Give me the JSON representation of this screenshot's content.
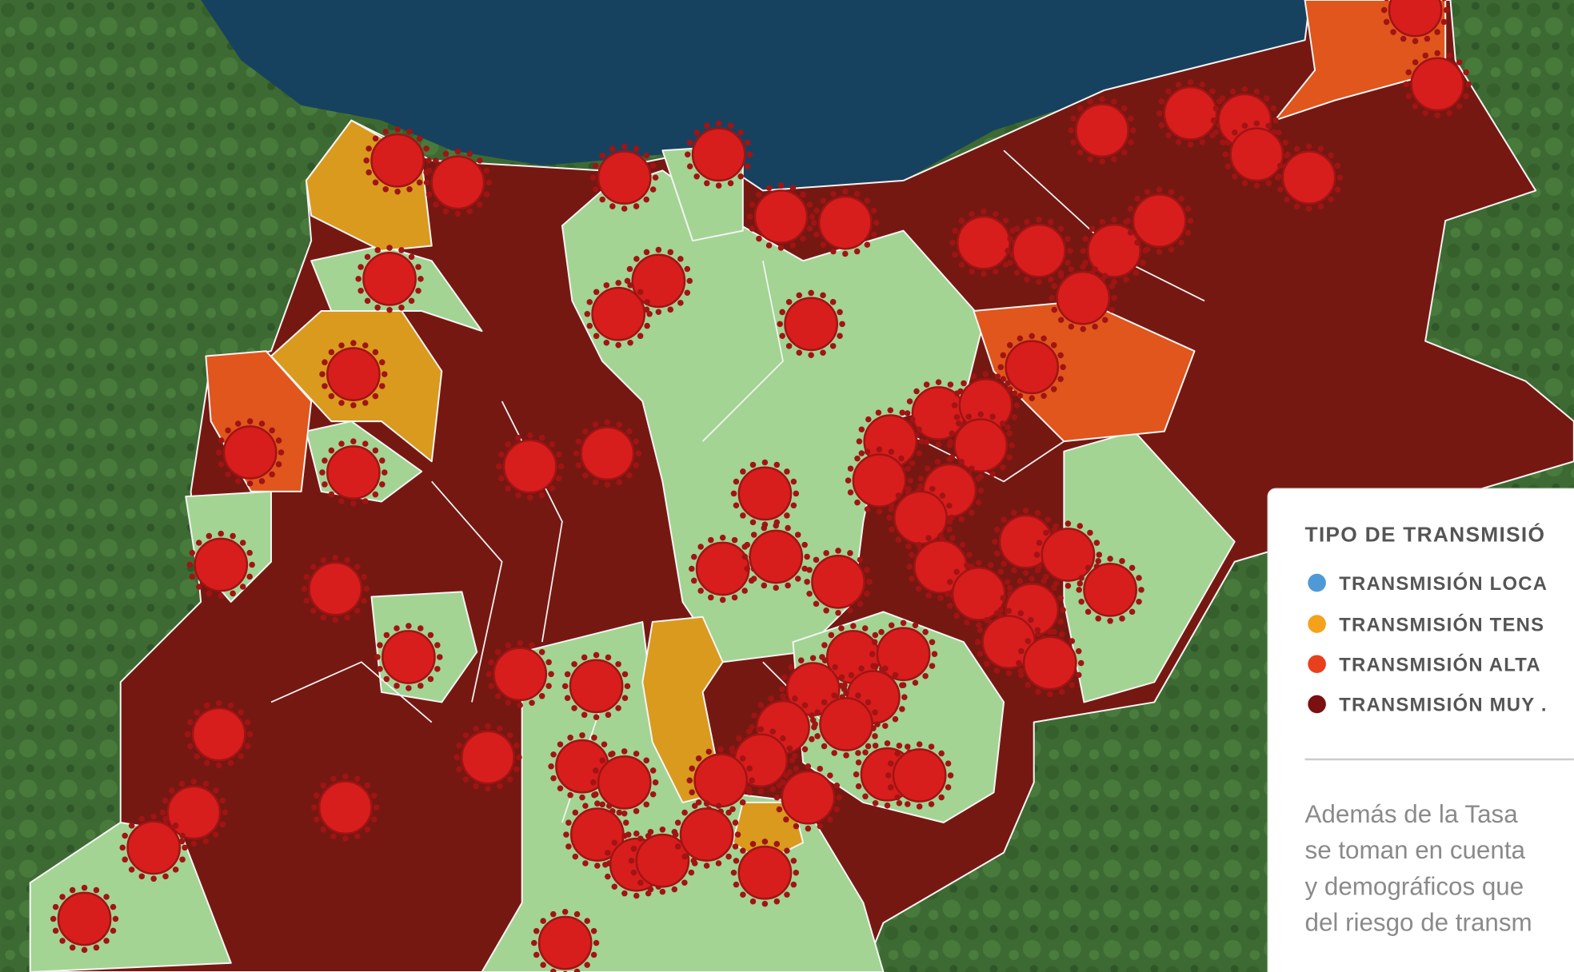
{
  "legend": {
    "title": "TIPO DE TRANSMISIÓ",
    "items": [
      "TRANSMISIÓN LOCA",
      "TRANSMISIÓN TENS",
      "TRANSMISIÓN ALTA",
      "TRANSMISIÓN MUY ."
    ]
  },
  "note": {
    "lines": [
      "Además de la Tasa",
      "se toman en cuenta",
      "y demográficos que",
      "del riesgo de transm"
    ]
  }
}
